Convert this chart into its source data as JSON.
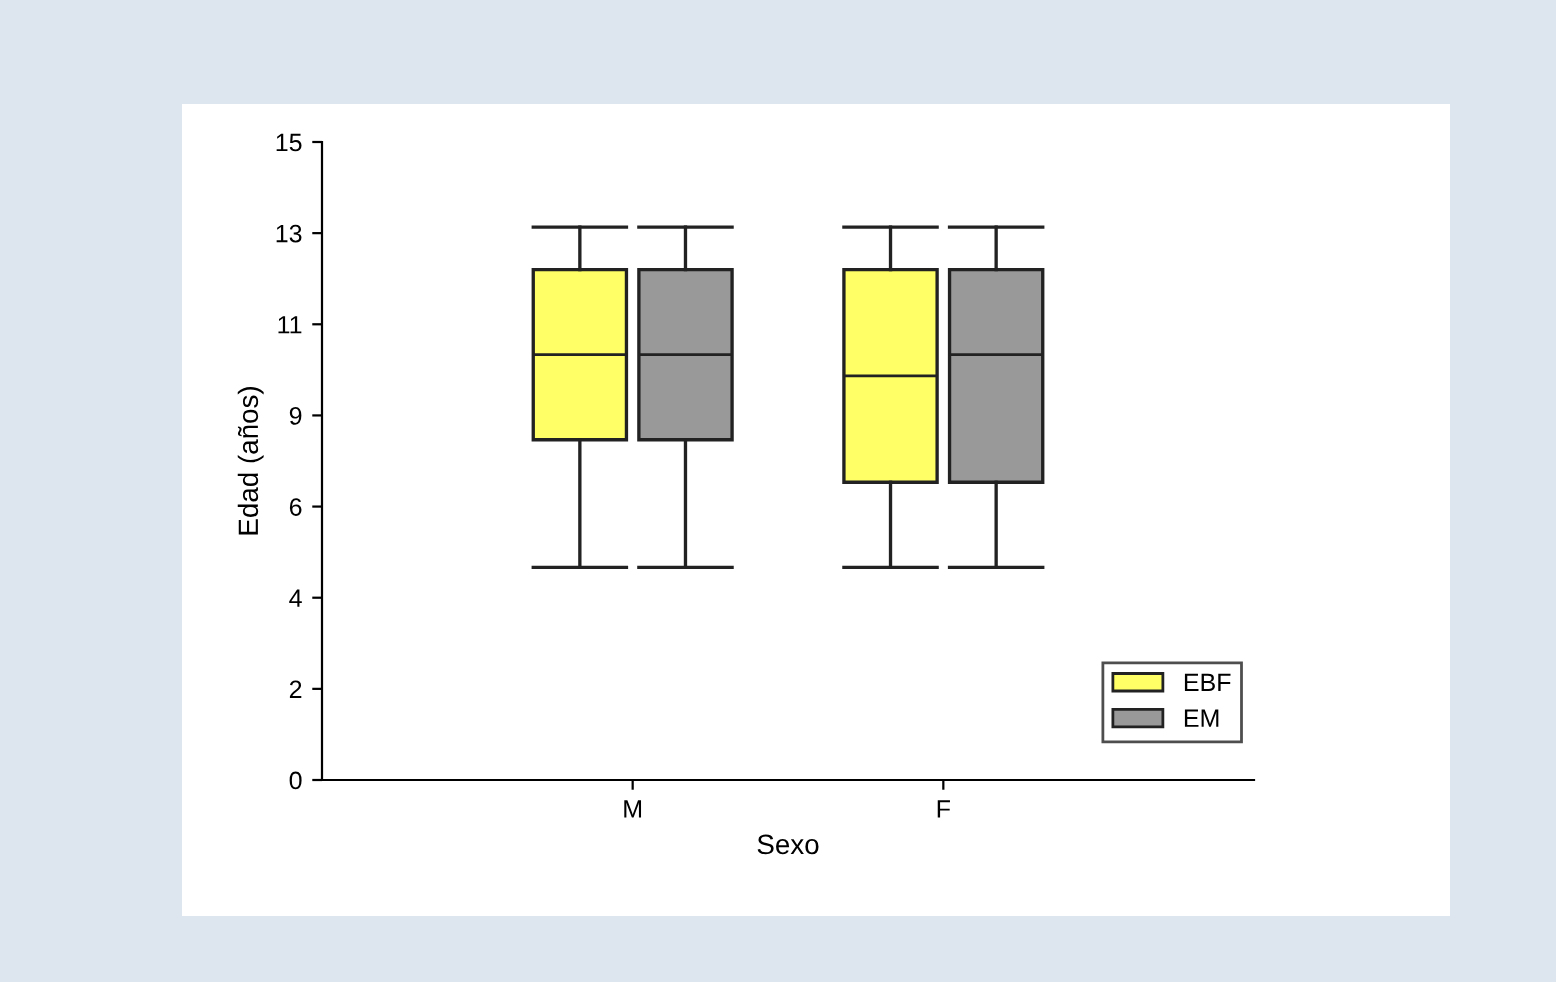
{
  "chart_data": {
    "type": "box",
    "xlabel": "Sexo",
    "ylabel": "Edad (años)",
    "categories": [
      "M",
      "F"
    ],
    "ylim": [
      0,
      15
    ],
    "yticks": [
      0,
      {
        "value": 2.142857,
        "label": "2"
      },
      {
        "value": 4.285714,
        "label": "4"
      },
      {
        "value": 6.428571,
        "label": "6"
      },
      {
        "value": 8.571429,
        "label": "9"
      },
      {
        "value": 10.714286,
        "label": "11"
      },
      {
        "value": 12.857143,
        "label": "13"
      },
      15
    ],
    "grid": false,
    "legend": "bottom right",
    "series": [
      {
        "name": "EBF",
        "color": "#ffff66",
        "boxes": [
          {
            "low": 5,
            "q1": 8,
            "median": 10,
            "q3": 12,
            "high": 13
          },
          {
            "low": 5,
            "q1": 7,
            "median": 9.5,
            "q3": 12,
            "high": 13
          }
        ]
      },
      {
        "name": "EM",
        "color": "#999999",
        "boxes": [
          {
            "low": 5,
            "q1": 8,
            "median": 10,
            "q3": 12,
            "high": 13
          },
          {
            "low": 5,
            "q1": 7,
            "median": 10,
            "q3": 12,
            "high": 13
          }
        ]
      }
    ]
  }
}
